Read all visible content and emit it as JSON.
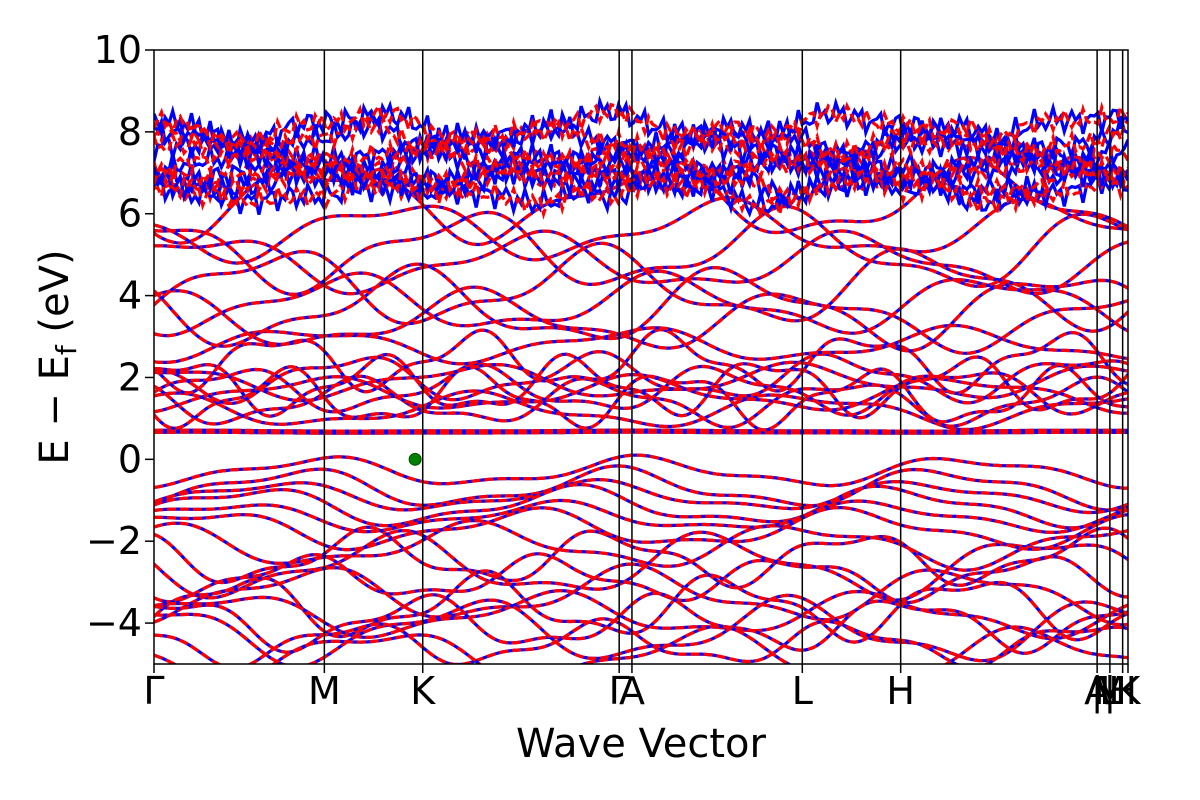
{
  "chart_data": {
    "type": "line",
    "title": "",
    "xlabel": "Wave Vector",
    "ylabel_main": "E − E",
    "ylabel_sub": "f",
    "ylabel_unit": " (eV)",
    "ylim": [
      -5,
      10
    ],
    "xlim": [
      0,
      1
    ],
    "yticks": [
      {
        "value": 10,
        "label": "10"
      },
      {
        "value": 8,
        "label": "8"
      },
      {
        "value": 6,
        "label": "6"
      },
      {
        "value": 4,
        "label": "4"
      },
      {
        "value": 2,
        "label": "2"
      },
      {
        "value": 0,
        "label": "0"
      },
      {
        "value": -2,
        "label": "−2"
      },
      {
        "value": -4,
        "label": "−4"
      }
    ],
    "kpoints": [
      {
        "label": "Γ",
        "x": 0.0
      },
      {
        "label": "M",
        "x": 0.1749
      },
      {
        "label": "K",
        "x": 0.2759
      },
      {
        "label": "Γ",
        "x": 0.4776
      },
      {
        "label": "A",
        "x": 0.4907
      },
      {
        "label": "L",
        "x": 0.6656
      },
      {
        "label": "H",
        "x": 0.7666
      },
      {
        "label": "A",
        "x": 0.9683
      },
      {
        "label": "|",
        "x": 0.9683
      },
      {
        "label": "L",
        "x": 0.9814
      },
      {
        "label": "M",
        "x": 0.9814
      },
      {
        "label": "|",
        "x": 0.9814
      },
      {
        "label": "H",
        "x": 0.9945
      },
      {
        "label": "K",
        "x": 1.0
      }
    ],
    "vbm_marker": {
      "x": 0.2681,
      "y": 0.0,
      "color": "#008000"
    },
    "series_colors": {
      "spin_up": "#0000ff",
      "spin_down": "#ff0000"
    },
    "band_groups": {
      "conduction_top": [
        6.6,
        6.8,
        7.0,
        7.2,
        7.5,
        7.8,
        8.1
      ],
      "conduction_mid": [
        3.4,
        3.7,
        3.8,
        4.2,
        4.8,
        5.1,
        5.6,
        6.3
      ],
      "conduction_low": [
        1.2,
        1.4,
        1.5,
        1.6,
        1.7,
        1.8,
        1.9,
        2.0,
        2.4,
        2.8
      ],
      "flat": [
        0.65,
        0.7
      ],
      "valence_top": [
        0.0,
        -0.4,
        -0.6,
        -0.85,
        -1.1,
        -1.4
      ],
      "valence_low": [
        -2.1,
        -2.4,
        -2.6,
        -2.9,
        -3.3,
        -3.6,
        -3.8,
        -4.0,
        -4.2,
        -4.5,
        -4.8
      ]
    }
  }
}
